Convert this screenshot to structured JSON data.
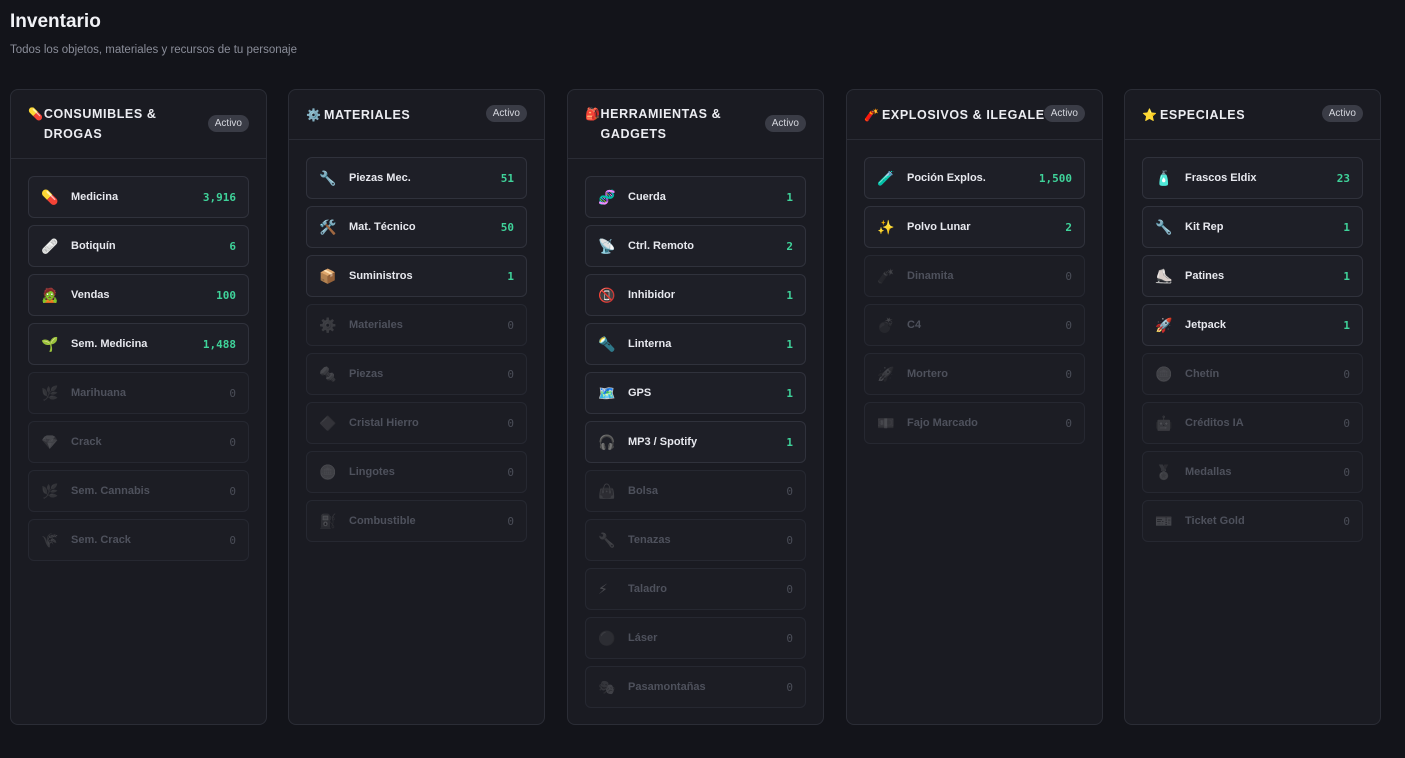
{
  "header": {
    "title": "Inventario",
    "subtitle": "Todos los objetos, materiales y recursos de tu personaje"
  },
  "colors": {
    "accent_qty": "#3fd39a",
    "bg": "#13141a",
    "card": "#1a1b22"
  },
  "categories": [
    {
      "icon": "💊",
      "title": "CONSUMIBLES & DROGAS",
      "badge": "Activo",
      "items": [
        {
          "icon": "💊",
          "name": "Medicina",
          "qty": "3,916"
        },
        {
          "icon": "🩹",
          "name": "Botiquín",
          "qty": "6"
        },
        {
          "icon": "🧟",
          "name": "Vendas",
          "qty": "100"
        },
        {
          "icon": "🌱",
          "name": "Sem. Medicina",
          "qty": "1,488"
        },
        {
          "icon": "🌿",
          "name": "Marihuana",
          "qty": "0"
        },
        {
          "icon": "💎",
          "name": "Crack",
          "qty": "0"
        },
        {
          "icon": "🌿",
          "name": "Sem. Cannabis",
          "qty": "0"
        },
        {
          "icon": "🌾",
          "name": "Sem. Crack",
          "qty": "0"
        }
      ]
    },
    {
      "icon": "⚙️",
      "title": "MATERIALES",
      "badge": "Activo",
      "items": [
        {
          "icon": "🔧",
          "name": "Piezas Mec.",
          "qty": "51"
        },
        {
          "icon": "🛠️",
          "name": "Mat. Técnico",
          "qty": "50"
        },
        {
          "icon": "📦",
          "name": "Suministros",
          "qty": "1"
        },
        {
          "icon": "⚙️",
          "name": "Materiales",
          "qty": "0"
        },
        {
          "icon": "🔩",
          "name": "Piezas",
          "qty": "0"
        },
        {
          "icon": "🔷",
          "name": "Cristal Hierro",
          "qty": "0"
        },
        {
          "icon": "🪙",
          "name": "Lingotes",
          "qty": "0"
        },
        {
          "icon": "⛽",
          "name": "Combustible",
          "qty": "0"
        }
      ]
    },
    {
      "icon": "🎒",
      "title": "HERRAMIENTAS & GADGETS",
      "badge": "Activo",
      "items": [
        {
          "icon": "🧬",
          "name": "Cuerda",
          "qty": "1"
        },
        {
          "icon": "📡",
          "name": "Ctrl. Remoto",
          "qty": "2"
        },
        {
          "icon": "📵",
          "name": "Inhibidor",
          "qty": "1"
        },
        {
          "icon": "🔦",
          "name": "Linterna",
          "qty": "1"
        },
        {
          "icon": "🗺️",
          "name": "GPS",
          "qty": "1"
        },
        {
          "icon": "🎧",
          "name": "MP3 / Spotify",
          "qty": "1"
        },
        {
          "icon": "👜",
          "name": "Bolsa",
          "qty": "0"
        },
        {
          "icon": "🔧",
          "name": "Tenazas",
          "qty": "0"
        },
        {
          "icon": "⚡",
          "name": "Taladro",
          "qty": "0"
        },
        {
          "icon": "🔴",
          "name": "Láser",
          "qty": "0"
        },
        {
          "icon": "🎭",
          "name": "Pasamontañas",
          "qty": "0"
        }
      ]
    },
    {
      "icon": "🧨",
      "title": "EXPLOSIVOS & ILEGALES",
      "badge": "Activo",
      "items": [
        {
          "icon": "🧪",
          "name": "Poción Explos.",
          "qty": "1,500"
        },
        {
          "icon": "✨",
          "name": "Polvo Lunar",
          "qty": "2"
        },
        {
          "icon": "🧨",
          "name": "Dinamita",
          "qty": "0"
        },
        {
          "icon": "💣",
          "name": "C4",
          "qty": "0"
        },
        {
          "icon": "🚀",
          "name": "Mortero",
          "qty": "0"
        },
        {
          "icon": "💵",
          "name": "Fajo Marcado",
          "qty": "0"
        }
      ]
    },
    {
      "icon": "⭐",
      "title": "ESPECIALES",
      "badge": "Activo",
      "items": [
        {
          "icon": "🧴",
          "name": "Frascos Eldix",
          "qty": "23"
        },
        {
          "icon": "🔧",
          "name": "Kit Rep",
          "qty": "1"
        },
        {
          "icon": "⛸️",
          "name": "Patines",
          "qty": "1"
        },
        {
          "icon": "🚀",
          "name": "Jetpack",
          "qty": "1"
        },
        {
          "icon": "🪙",
          "name": "Chetín",
          "qty": "0"
        },
        {
          "icon": "🤖",
          "name": "Créditos IA",
          "qty": "0"
        },
        {
          "icon": "🏅",
          "name": "Medallas",
          "qty": "0"
        },
        {
          "icon": "🎫",
          "name": "Ticket Gold",
          "qty": "0"
        }
      ]
    }
  ]
}
